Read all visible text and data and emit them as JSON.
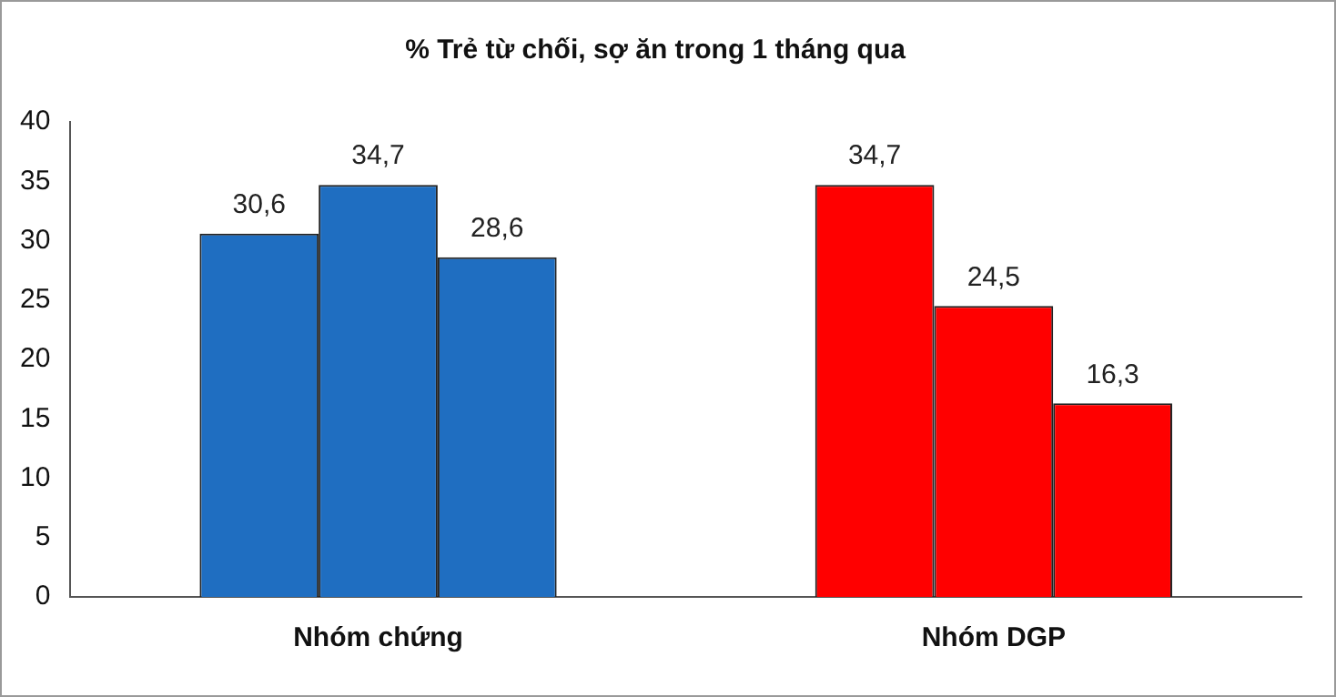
{
  "chart_data": {
    "type": "bar",
    "title": "% Trẻ từ chối, sợ ăn trong 1 tháng qua",
    "categories": [
      "Nhóm chứng",
      "Nhóm DGP"
    ],
    "series": [
      {
        "colors": [
          "#1f6ec1",
          "#ff0000"
        ],
        "values": [
          30.6,
          34.7
        ],
        "value_labels": [
          "30,6",
          "34,7"
        ]
      },
      {
        "colors": [
          "#1f6ec1",
          "#ff0000"
        ],
        "values": [
          34.7,
          24.5
        ],
        "value_labels": [
          "34,7",
          "24,5"
        ]
      },
      {
        "colors": [
          "#1f6ec1",
          "#ff0000"
        ],
        "values": [
          28.6,
          16.3
        ],
        "value_labels": [
          "28,6",
          "16,3"
        ]
      }
    ],
    "ylim": [
      0,
      40
    ],
    "yticks": [
      0,
      5,
      10,
      15,
      20,
      25,
      30,
      35,
      40
    ],
    "grid": false,
    "legend": false
  }
}
